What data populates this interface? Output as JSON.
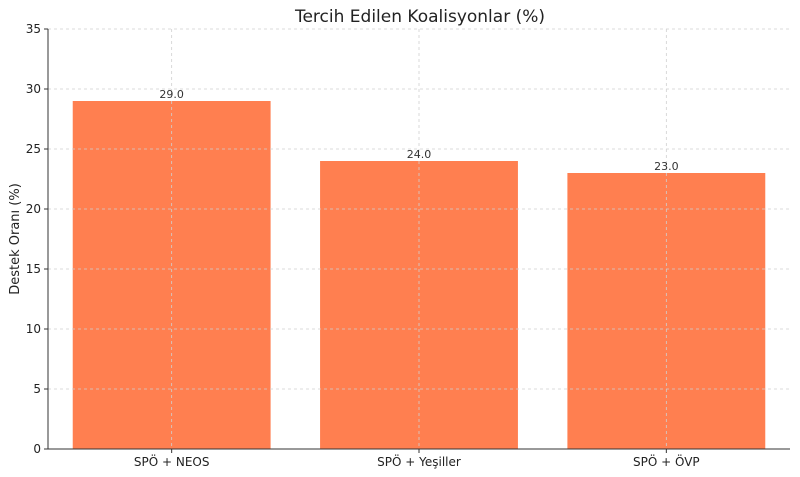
{
  "chart_data": {
    "type": "bar",
    "title": "Tercih Edilen Koalisyonlar (%)",
    "xlabel": "",
    "ylabel": "Destek Oranı (%)",
    "categories": [
      "SPÖ + NEOS",
      "SPÖ + Yeşiller",
      "SPÖ + ÖVP"
    ],
    "values": [
      29.0,
      24.0,
      23.0
    ],
    "data_labels": [
      "29.0",
      "24.0",
      "23.0"
    ],
    "ylim": [
      0,
      35
    ],
    "yticks": [
      0,
      5,
      10,
      15,
      20,
      25,
      30,
      35
    ],
    "grid": true,
    "bar_color": "#FF7F50"
  }
}
